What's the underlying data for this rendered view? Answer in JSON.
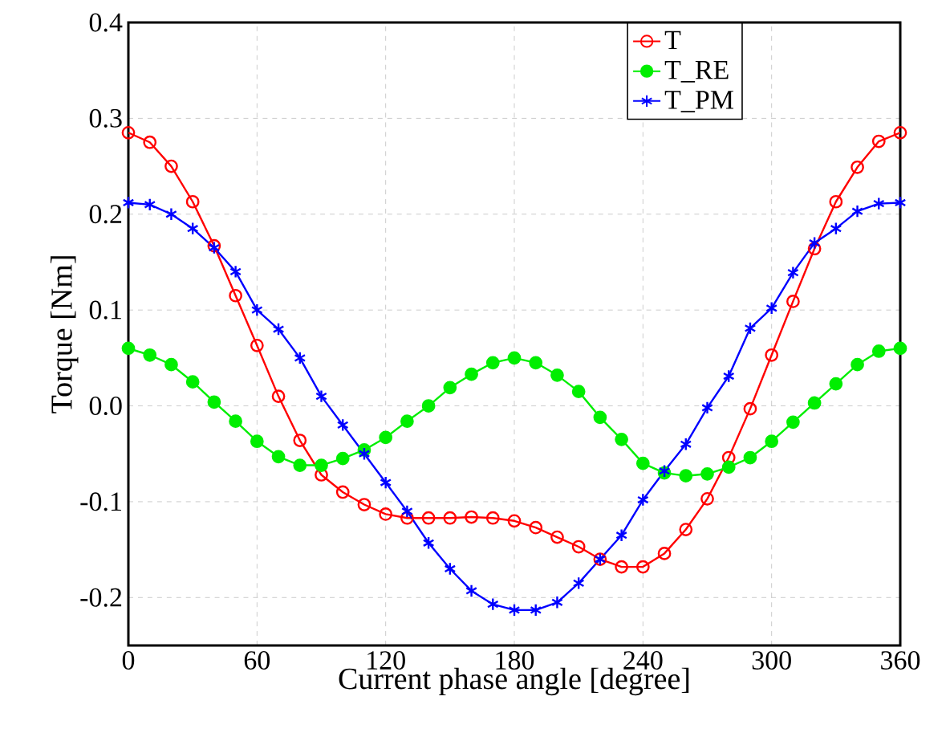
{
  "chart_data": {
    "type": "line",
    "xlabel": "Current phase angle [degree]",
    "ylabel": "Torque [Nm]",
    "x": [
      0,
      10,
      20,
      30,
      40,
      50,
      60,
      70,
      80,
      90,
      100,
      110,
      120,
      130,
      140,
      150,
      160,
      170,
      180,
      190,
      200,
      210,
      220,
      230,
      240,
      250,
      260,
      270,
      280,
      290,
      300,
      310,
      320,
      330,
      340,
      350,
      360
    ],
    "series": [
      {
        "name": "T",
        "color": "#ff0000",
        "marker": "circle",
        "values": [
          0.285,
          0.275,
          0.25,
          0.213,
          0.167,
          0.115,
          0.063,
          0.01,
          -0.036,
          -0.072,
          -0.09,
          -0.103,
          -0.113,
          -0.117,
          -0.117,
          -0.117,
          -0.116,
          -0.117,
          -0.12,
          -0.127,
          -0.137,
          -0.147,
          -0.16,
          -0.168,
          -0.168,
          -0.154,
          -0.129,
          -0.097,
          -0.054,
          -0.003,
          0.053,
          0.109,
          0.164,
          0.213,
          0.249,
          0.276,
          0.285
        ]
      },
      {
        "name": "T_RE",
        "color": "#00ee00",
        "marker": "circle",
        "values": [
          0.06,
          0.053,
          0.043,
          0.025,
          0.004,
          -0.016,
          -0.037,
          -0.053,
          -0.062,
          -0.062,
          -0.055,
          -0.046,
          -0.033,
          -0.016,
          0.0,
          0.019,
          0.033,
          0.045,
          0.05,
          0.045,
          0.032,
          0.015,
          -0.012,
          -0.035,
          -0.06,
          -0.07,
          -0.073,
          -0.071,
          -0.064,
          -0.054,
          -0.037,
          -0.017,
          0.003,
          0.023,
          0.043,
          0.057,
          0.06
        ]
      },
      {
        "name": "T_PM",
        "color": "#0000ff",
        "marker": "cross",
        "values": [
          0.212,
          0.21,
          0.2,
          0.185,
          0.165,
          0.14,
          0.1,
          0.08,
          0.05,
          0.01,
          -0.02,
          -0.05,
          -0.08,
          -0.11,
          -0.143,
          -0.17,
          -0.193,
          -0.207,
          -0.213,
          -0.213,
          -0.205,
          -0.185,
          -0.16,
          -0.135,
          -0.098,
          -0.068,
          -0.04,
          -0.002,
          0.031,
          0.081,
          0.102,
          0.139,
          0.17,
          0.185,
          0.203,
          0.211,
          0.212
        ]
      }
    ],
    "xlim": [
      0,
      360
    ],
    "xticks": [
      0,
      60,
      120,
      180,
      240,
      300,
      360
    ],
    "ylim": [
      -0.25,
      0.4
    ],
    "yticks": [
      -0.2,
      -0.1,
      {
        "value": 0,
        "label": "0.0"
      },
      0.1,
      0.2,
      0.3,
      0.4
    ],
    "grid": true,
    "legend": "top right",
    "line_style": "solid"
  }
}
